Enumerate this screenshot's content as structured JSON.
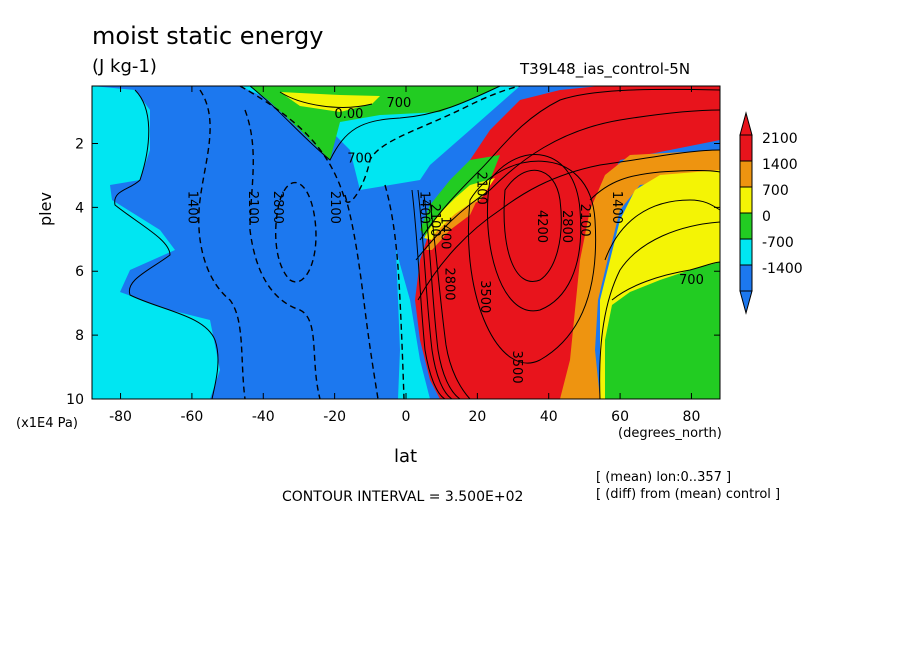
{
  "chart_data": {
    "type": "contour",
    "title": "moist static energy",
    "units": "(J kg-1)",
    "run_label": "T39L48_ias_control-5N",
    "xlabel": "lat",
    "xunit": "(degrees_north)",
    "ylabel": "plev",
    "yunit": "(x1E4 Pa)",
    "x_ticks": [
      "-80",
      "-60",
      "-40",
      "-20",
      "0",
      "20",
      "40",
      "60",
      "80"
    ],
    "x_tick_values": [
      -80,
      -60,
      -40,
      -20,
      0,
      20,
      40,
      60,
      80
    ],
    "y_ticks": [
      "2",
      "4",
      "6",
      "8",
      "10"
    ],
    "y_tick_values": [
      2,
      4,
      6,
      8,
      10
    ],
    "xlim": [
      -88,
      88
    ],
    "ylim": [
      10,
      0.2
    ],
    "contour_interval": "CONTOUR INTERVAL = 3.500E+02",
    "notes": [
      "[ (mean) lon:0..357 ]",
      "[ (diff) from (mean) control ]"
    ],
    "colorbar": {
      "labels": [
        "2100",
        "1400",
        "700",
        "0",
        "-700",
        "-1400"
      ],
      "colors": [
        "#e8141c",
        "#ee9410",
        "#f4f405",
        "#22cc22",
        "#00e6f2",
        "#1c78ef"
      ]
    },
    "regions": [
      {
        "name": "south-polar",
        "level": "-700",
        "color": "#00e6f2"
      },
      {
        "name": "southern-mid",
        "level": "-1400",
        "color": "#1c78ef"
      },
      {
        "name": "upper-tropics",
        "level": "0 to 700",
        "color": "#22cc22"
      },
      {
        "name": "northern-subtropics",
        "level": ">2100",
        "color": "#e8141c"
      },
      {
        "name": "northern-mid",
        "level": "1400",
        "color": "#ee9410"
      },
      {
        "name": "north-polar-upper",
        "level": "700",
        "color": "#f4f405"
      },
      {
        "name": "north-polar-lower",
        "level": "0",
        "color": "#22cc22"
      }
    ],
    "contour_labels": [
      {
        "text": "700",
        "x": -2,
        "y": 0.85
      },
      {
        "text": "0.00",
        "x": -16,
        "y": 1.2
      },
      {
        "text": "700",
        "x": -13,
        "y": 2.6
      },
      {
        "text": "1400",
        "x": -61,
        "y": 4.0
      },
      {
        "text": "2100",
        "x": -44,
        "y": 4.0
      },
      {
        "text": "2800",
        "x": -37,
        "y": 4.0
      },
      {
        "text": "2100",
        "x": -21,
        "y": 4.0
      },
      {
        "text": "1400",
        "x": 4,
        "y": 4.0
      },
      {
        "text": "2100",
        "x": 7,
        "y": 4.4
      },
      {
        "text": "1400",
        "x": 10,
        "y": 4.8
      },
      {
        "text": "2100",
        "x": 20,
        "y": 3.4
      },
      {
        "text": "2800",
        "x": 11,
        "y": 6.4
      },
      {
        "text": "3500",
        "x": 21,
        "y": 6.8
      },
      {
        "text": "4200",
        "x": 37,
        "y": 4.6
      },
      {
        "text": "2800",
        "x": 44,
        "y": 4.6
      },
      {
        "text": "2100",
        "x": 49,
        "y": 4.4
      },
      {
        "text": "1400",
        "x": 58,
        "y": 4.0
      },
      {
        "text": "3500",
        "x": 30,
        "y": 9.0
      },
      {
        "text": "700",
        "x": 80,
        "y": 6.4
      }
    ]
  }
}
